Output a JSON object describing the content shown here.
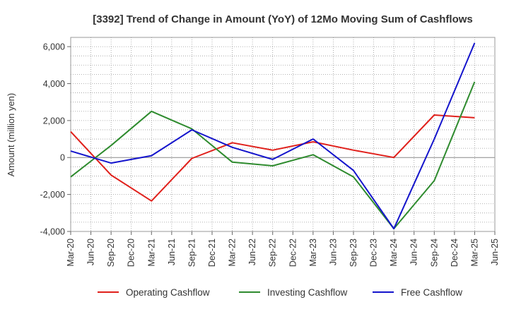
{
  "chart_data": {
    "type": "line",
    "title": "[3392]  Trend of Change in Amount (YoY) of 12Mo Moving Sum of Cashflows",
    "xlabel": "",
    "ylabel": "Amount (million yen)",
    "ylim": [
      -4000,
      6500
    ],
    "yticks": [
      -4000,
      -2000,
      0,
      2000,
      4000,
      6000
    ],
    "ytick_labels": [
      "-4,000",
      "-2,000",
      "0",
      "2,000",
      "4,000",
      "6,000"
    ],
    "categories": [
      "Mar-20",
      "Jun-20",
      "Sep-20",
      "Dec-20",
      "Mar-21",
      "Jun-21",
      "Sep-21",
      "Dec-21",
      "Mar-22",
      "Jun-22",
      "Sep-22",
      "Dec-22",
      "Mar-23",
      "Jun-23",
      "Sep-23",
      "Dec-23",
      "Mar-24",
      "Jun-24",
      "Sep-24",
      "Dec-24",
      "Mar-25",
      "Jun-25"
    ],
    "grid": true,
    "legend_position": "bottom",
    "series": [
      {
        "name": "Operating Cashflow",
        "color": "#e0201b",
        "values": [
          1400,
          null,
          -950,
          null,
          -2350,
          null,
          -50,
          null,
          800,
          null,
          400,
          null,
          850,
          null,
          400,
          null,
          0,
          null,
          2300,
          null,
          2150,
          null
        ]
      },
      {
        "name": "Investing Cashflow",
        "color": "#2e8b2e",
        "values": [
          -1050,
          null,
          650,
          null,
          2500,
          null,
          1550,
          null,
          -250,
          null,
          -450,
          null,
          150,
          null,
          -1050,
          null,
          -3850,
          null,
          -1250,
          null,
          4100,
          null
        ]
      },
      {
        "name": "Free Cashflow",
        "color": "#1414cc",
        "values": [
          350,
          null,
          -300,
          null,
          100,
          null,
          1500,
          null,
          550,
          null,
          -100,
          null,
          1000,
          null,
          -700,
          null,
          -3850,
          null,
          1000,
          null,
          6200,
          null
        ]
      }
    ]
  }
}
